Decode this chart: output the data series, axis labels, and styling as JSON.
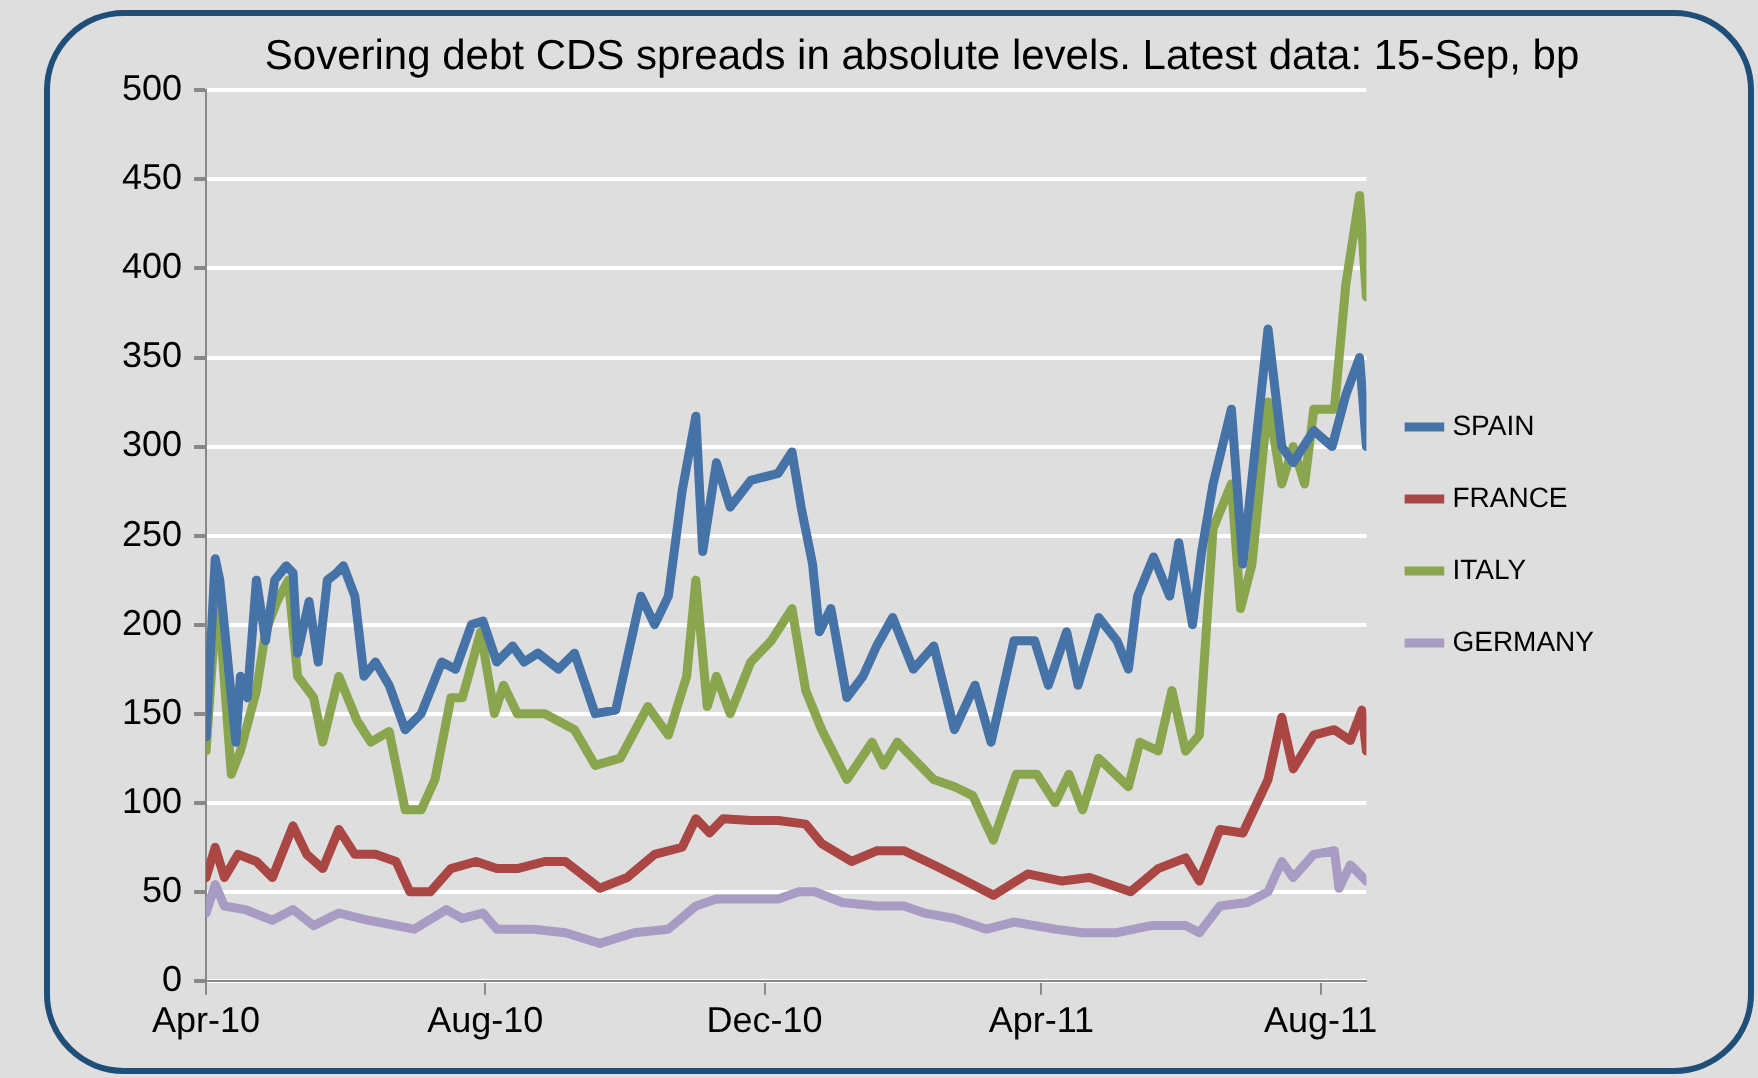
{
  "chart_data": {
    "type": "line",
    "title": "Sovering debt CDS spreads in absolute levels. Latest data: 15-Sep, bp",
    "xlim": [
      "2010-04-01",
      "2011-08-21"
    ],
    "xticks": [
      {
        "value": "2010-04-01",
        "label": "Apr-10"
      },
      {
        "value": "2010-08-01",
        "label": "Aug-10"
      },
      {
        "value": "2010-12-01",
        "label": "Dec-10"
      },
      {
        "value": "2011-04-01",
        "label": "Apr-11"
      },
      {
        "value": "2011-08-01",
        "label": "Aug-11"
      }
    ],
    "ylim": [
      0,
      500
    ],
    "yticks": [
      0,
      50,
      100,
      150,
      200,
      250,
      300,
      350,
      400,
      450,
      500
    ],
    "grid": "y",
    "legend": "right",
    "marker": "none",
    "line_style": "solid",
    "series": [
      {
        "name": "SPAIN",
        "color": "#4572a7",
        "x": [
          "2010-04-01",
          "2010-04-05",
          "2010-04-07",
          "2010-04-14",
          "2010-04-16",
          "2010-04-19",
          "2010-04-23",
          "2010-04-27",
          "2010-05-01",
          "2010-05-06",
          "2010-05-09",
          "2010-05-11",
          "2010-05-16",
          "2010-05-20",
          "2010-05-24",
          "2010-05-28",
          "2010-05-31",
          "2010-06-05",
          "2010-06-09",
          "2010-06-14",
          "2010-06-20",
          "2010-06-27",
          "2010-07-04",
          "2010-07-13",
          "2010-07-19",
          "2010-07-26",
          "2010-07-31",
          "2010-08-06",
          "2010-08-13",
          "2010-08-18",
          "2010-08-24",
          "2010-09-02",
          "2010-09-09",
          "2010-09-18",
          "2010-09-27",
          "2010-10-08",
          "2010-10-14",
          "2010-10-20",
          "2010-10-26",
          "2010-11-01",
          "2010-11-04",
          "2010-11-10",
          "2010-11-16",
          "2010-11-25",
          "2010-12-07",
          "2010-12-13",
          "2010-12-17",
          "2010-12-22",
          "2010-12-25",
          "2010-12-30",
          "2011-01-06",
          "2011-01-13",
          "2011-01-19",
          "2011-01-26",
          "2011-02-04",
          "2011-02-13",
          "2011-02-22",
          "2011-03-03",
          "2011-03-10",
          "2011-03-20",
          "2011-03-29",
          "2011-04-04",
          "2011-04-12",
          "2011-04-17",
          "2011-04-26",
          "2011-05-04",
          "2011-05-09",
          "2011-05-13",
          "2011-05-20",
          "2011-05-27",
          "2011-05-31",
          "2011-06-06",
          "2011-06-10",
          "2011-06-15",
          "2011-06-23",
          "2011-06-28",
          "2011-07-09",
          "2011-07-15",
          "2011-07-20",
          "2011-07-29",
          "2011-08-06",
          "2011-08-12",
          "2011-08-18",
          "2011-08-21"
        ],
        "values": [
          137,
          237,
          225,
          134,
          171,
          159,
          225,
          191,
          225,
          233,
          229,
          184,
          213,
          179,
          225,
          229,
          233,
          216,
          171,
          179,
          166,
          141,
          150,
          179,
          175,
          200,
          202,
          179,
          188,
          179,
          184,
          175,
          184,
          150,
          152,
          216,
          200,
          216,
          275,
          317,
          241,
          291,
          266,
          281,
          285,
          297,
          266,
          234,
          196,
          209,
          159,
          171,
          188,
          204,
          175,
          188,
          141,
          166,
          134,
          191,
          191,
          166,
          196,
          166,
          204,
          191,
          175,
          216,
          238,
          216,
          246,
          200,
          241,
          279,
          321,
          234,
          366,
          300,
          291,
          309,
          300,
          329,
          350,
          300
        ]
      },
      {
        "name": "FRANCE",
        "color": "#aa4643",
        "x": [
          "2010-04-01",
          "2010-04-05",
          "2010-04-09",
          "2010-04-15",
          "2010-04-23",
          "2010-04-30",
          "2010-05-09",
          "2010-05-15",
          "2010-05-22",
          "2010-05-29",
          "2010-06-05",
          "2010-06-14",
          "2010-06-23",
          "2010-06-29",
          "2010-07-08",
          "2010-07-17",
          "2010-07-28",
          "2010-08-06",
          "2010-08-15",
          "2010-08-27",
          "2010-09-05",
          "2010-09-14",
          "2010-09-20",
          "2010-10-02",
          "2010-10-14",
          "2010-10-26",
          "2010-11-01",
          "2010-11-07",
          "2010-11-13",
          "2010-11-25",
          "2010-12-07",
          "2010-12-19",
          "2010-12-26",
          "2011-01-08",
          "2011-01-19",
          "2011-01-31",
          "2011-02-13",
          "2011-02-24",
          "2011-03-11",
          "2011-03-26",
          "2011-04-10",
          "2011-04-22",
          "2011-05-10",
          "2011-05-22",
          "2011-06-03",
          "2011-06-09",
          "2011-06-18",
          "2011-06-28",
          "2011-07-09",
          "2011-07-15",
          "2011-07-20",
          "2011-07-29",
          "2011-08-07",
          "2011-08-14",
          "2011-08-19",
          "2011-08-21"
        ],
        "values": [
          58,
          75,
          58,
          71,
          67,
          58,
          87,
          71,
          63,
          85,
          71,
          71,
          67,
          50,
          50,
          63,
          67,
          63,
          63,
          67,
          67,
          58,
          52,
          58,
          71,
          75,
          91,
          83,
          91,
          90,
          90,
          88,
          77,
          67,
          73,
          73,
          65,
          58,
          48,
          60,
          56,
          58,
          50,
          63,
          69,
          56,
          85,
          83,
          113,
          148,
          119,
          138,
          141,
          135,
          152,
          129
        ]
      },
      {
        "name": "ITALY",
        "color": "#89a54e",
        "x": [
          "2010-04-01",
          "2010-04-06",
          "2010-04-12",
          "2010-04-16",
          "2010-04-23",
          "2010-04-27",
          "2010-05-02",
          "2010-05-07",
          "2010-05-11",
          "2010-05-18",
          "2010-05-22",
          "2010-05-29",
          "2010-06-06",
          "2010-06-12",
          "2010-06-20",
          "2010-06-27",
          "2010-07-04",
          "2010-07-10",
          "2010-07-17",
          "2010-07-22",
          "2010-07-30",
          "2010-08-05",
          "2010-08-09",
          "2010-08-15",
          "2010-08-27",
          "2010-09-09",
          "2010-09-18",
          "2010-09-29",
          "2010-10-11",
          "2010-10-20",
          "2010-10-28",
          "2010-11-01",
          "2010-11-06",
          "2010-11-10",
          "2010-11-16",
          "2010-11-25",
          "2010-12-04",
          "2010-12-13",
          "2010-12-19",
          "2010-12-26",
          "2011-01-06",
          "2011-01-17",
          "2011-01-22",
          "2011-01-28",
          "2011-02-13",
          "2011-02-22",
          "2011-03-02",
          "2011-03-11",
          "2011-03-21",
          "2011-03-30",
          "2011-04-07",
          "2011-04-13",
          "2011-04-19",
          "2011-04-26",
          "2011-05-09",
          "2011-05-14",
          "2011-05-22",
          "2011-05-28",
          "2011-06-03",
          "2011-06-09",
          "2011-06-15",
          "2011-06-23",
          "2011-06-27",
          "2011-07-02",
          "2011-07-09",
          "2011-07-15",
          "2011-07-20",
          "2011-07-25",
          "2011-07-29",
          "2011-08-07",
          "2011-08-12",
          "2011-08-18",
          "2011-08-21"
        ],
        "values": [
          129,
          221,
          116,
          129,
          163,
          196,
          213,
          225,
          171,
          159,
          134,
          171,
          146,
          134,
          140,
          96,
          96,
          113,
          159,
          159,
          196,
          150,
          166,
          150,
          150,
          141,
          121,
          125,
          154,
          138,
          171,
          225,
          154,
          171,
          150,
          179,
          191,
          209,
          163,
          141,
          113,
          134,
          121,
          134,
          113,
          109,
          104,
          79,
          116,
          116,
          100,
          116,
          96,
          125,
          109,
          134,
          129,
          163,
          129,
          138,
          254,
          279,
          209,
          234,
          325,
          279,
          300,
          279,
          321,
          321,
          391,
          441,
          384
        ]
      },
      {
        "name": "GERMANY",
        "color": "#a99cc4",
        "x": [
          "2010-04-01",
          "2010-04-05",
          "2010-04-09",
          "2010-04-18",
          "2010-04-30",
          "2010-05-09",
          "2010-05-18",
          "2010-05-29",
          "2010-06-11",
          "2010-06-23",
          "2010-07-01",
          "2010-07-15",
          "2010-07-22",
          "2010-07-31",
          "2010-08-06",
          "2010-08-22",
          "2010-09-05",
          "2010-09-20",
          "2010-10-05",
          "2010-10-20",
          "2010-11-01",
          "2010-11-10",
          "2010-11-25",
          "2010-12-07",
          "2010-12-16",
          "2010-12-23",
          "2011-01-04",
          "2011-01-19",
          "2011-01-31",
          "2011-02-09",
          "2011-02-22",
          "2011-03-08",
          "2011-03-20",
          "2011-04-07",
          "2011-04-19",
          "2011-05-04",
          "2011-05-19",
          "2011-06-03",
          "2011-06-09",
          "2011-06-18",
          "2011-06-30",
          "2011-07-09",
          "2011-07-15",
          "2011-07-20",
          "2011-07-29",
          "2011-08-07",
          "2011-08-09",
          "2011-08-14",
          "2011-08-21"
        ],
        "values": [
          38,
          54,
          42,
          40,
          34,
          40,
          31,
          38,
          34,
          31,
          29,
          40,
          35,
          38,
          29,
          29,
          27,
          21,
          27,
          29,
          42,
          46,
          46,
          46,
          50,
          50,
          44,
          42,
          42,
          38,
          35,
          29,
          33,
          29,
          27,
          27,
          31,
          31,
          27,
          42,
          44,
          50,
          67,
          58,
          71,
          73,
          52,
          65,
          56
        ]
      }
    ]
  }
}
